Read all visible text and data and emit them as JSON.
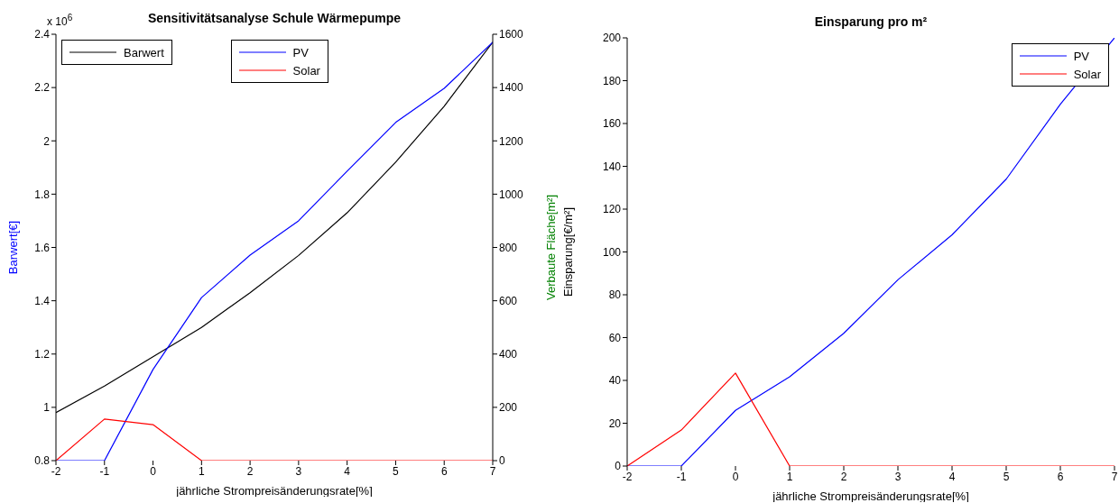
{
  "chart_data": [
    {
      "type": "line",
      "title": "Sensitivitätsanalyse Schule Wärmepumpe",
      "xlabel": "jährliche Strompreisänderungsrate[%]",
      "ylabel": "Barwert[€]",
      "y2label": "Verbaute Fläche[m²]",
      "annotations": [
        "x 10$^{6}$"
      ],
      "x": [
        -2,
        -1,
        0,
        1,
        2,
        3,
        4,
        5,
        6,
        7
      ],
      "series": [
        {
          "name": "Barwert",
          "color": "#000000",
          "values": [
            0.98,
            1.08,
            1.19,
            1.3,
            1.43,
            1.57,
            1.73,
            1.92,
            2.13,
            2.37
          ]
        },
        {
          "name": "PV",
          "color": "#0000ff",
          "axis": "y2",
          "values": [
            0,
            0,
            342,
            612,
            771,
            900,
            1086,
            1269,
            1397,
            1570
          ]
        },
        {
          "name": "Solar",
          "color": "#ff0000",
          "axis": "y2",
          "values": [
            0,
            156,
            135,
            0,
            0,
            0,
            0,
            0,
            0,
            0
          ]
        }
      ],
      "xlim": [
        -2,
        7
      ],
      "xticks": [
        -2,
        -1,
        0,
        1,
        2,
        3,
        4,
        5,
        6,
        7
      ],
      "ylim": [
        0.8,
        2.4
      ],
      "yticks": [
        0.8,
        1,
        1.2,
        1.4,
        1.6,
        1.8,
        2,
        2.2,
        2.4
      ],
      "y2lim": [
        0,
        1600
      ],
      "y2ticks": [
        0,
        200,
        400,
        600,
        800,
        1000,
        1200,
        1400,
        1600
      ],
      "legend": "top left",
      "marker": "none",
      "line_style": "solid"
    },
    {
      "type": "line",
      "title": "Einsparung pro m²",
      "xlabel": "jährliche Strompreisänderungsrate[%]",
      "ylabel": "Einsparung[€/m²]",
      "x": [
        -2,
        -1,
        0,
        1,
        2,
        3,
        4,
        5,
        6,
        7
      ],
      "series": [
        {
          "name": "PV",
          "color": "#0000ff",
          "values": [
            0,
            0,
            26,
            41.7,
            62,
            87,
            108,
            134,
            169,
            200
          ]
        },
        {
          "name": "Solar",
          "color": "#ff0000",
          "values": [
            0,
            16.8,
            43.4,
            0,
            0,
            0,
            0,
            0,
            0,
            0
          ]
        }
      ],
      "xlim": [
        -2,
        7
      ],
      "xticks": [
        -2,
        -1,
        0,
        1,
        2,
        3,
        4,
        5,
        6,
        7
      ],
      "ylim": [
        0,
        200
      ],
      "yticks": [
        0,
        20,
        40,
        60,
        80,
        100,
        120,
        140,
        160,
        180,
        200
      ],
      "legend": "top right",
      "marker": "none",
      "line_style": "solid"
    }
  ]
}
